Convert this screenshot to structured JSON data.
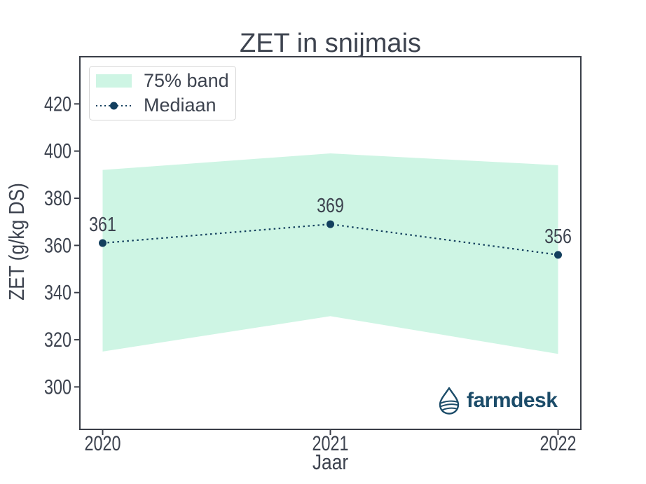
{
  "chart_data": {
    "type": "line",
    "title": "ZET in snijmais",
    "xlabel": "Jaar",
    "ylabel": "ZET (g/kg DS)",
    "x": [
      2020,
      2021,
      2022
    ],
    "yticks": [
      300,
      320,
      340,
      360,
      380,
      400,
      420
    ],
    "xlim": [
      2019.9,
      2022.1
    ],
    "ylim": [
      282,
      440
    ],
    "grid": false,
    "legend_position": "upper-left",
    "series": [
      {
        "name": "Mediaan",
        "values": [
          361,
          369,
          356
        ],
        "labels": [
          "361",
          "369",
          "356"
        ],
        "style": "dotted",
        "marker": "circle"
      }
    ],
    "band": {
      "name": "75% band",
      "lower": [
        315,
        330,
        314
      ],
      "upper": [
        392,
        399,
        394
      ]
    }
  },
  "legend": {
    "items": [
      "75% band",
      "Mediaan"
    ]
  },
  "logo": {
    "text": "farmdesk"
  },
  "colors": {
    "band": "#cef5e4",
    "median": "#133f5e",
    "text": "#3d434f",
    "spine": "#3a3e48",
    "legend_border": "#d6d6d6",
    "logo": "#1c4c69",
    "background": "#ffffff"
  }
}
